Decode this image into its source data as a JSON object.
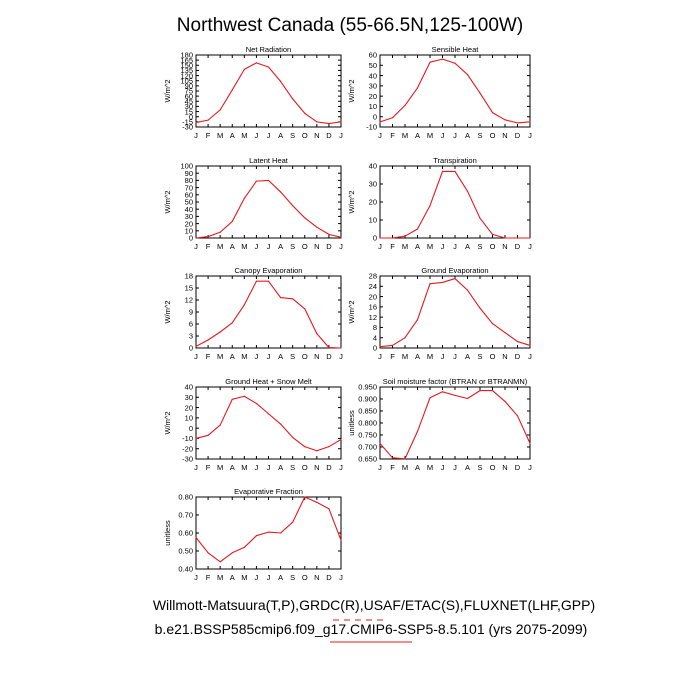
{
  "title": "Northwest Canada (55-66.5N,125-100W)",
  "footer": {
    "line1": "Willmott-Matsuura(T,P),GRDC(R),USAF/ETAC(S),FLUXNET(LHF,GPP)",
    "line2": "b.e21.BSSP585cmip6.f09_g17.CMIP6-SSP5-8.5.101 (yrs 2075-2099)"
  },
  "colors": {
    "line": "#e8181e",
    "axis": "#000000"
  },
  "chart_data": [
    {
      "type": "line",
      "title": "Net Radiation",
      "ylabel": "W/m^2",
      "categories": [
        "J",
        "F",
        "M",
        "A",
        "M",
        "J",
        "J",
        "A",
        "S",
        "O",
        "N",
        "D",
        "J"
      ],
      "yticks": [
        -30,
        -15,
        0,
        15,
        30,
        45,
        60,
        75,
        90,
        105,
        120,
        135,
        150,
        165,
        180
      ],
      "ylim": [
        -30,
        180
      ],
      "values": [
        -17,
        -10,
        20,
        78,
        138,
        157,
        145,
        103,
        52,
        10,
        -15,
        -20,
        -15
      ]
    },
    {
      "type": "line",
      "title": "Sensible Heat",
      "ylabel": "W/m^2",
      "categories": [
        "J",
        "F",
        "M",
        "A",
        "M",
        "J",
        "J",
        "A",
        "S",
        "O",
        "N",
        "D",
        "J"
      ],
      "yticks": [
        -10,
        0,
        10,
        20,
        30,
        40,
        50,
        60
      ],
      "ylim": [
        -10,
        60
      ],
      "values": [
        -5,
        -1,
        11,
        28,
        53,
        56,
        52,
        41,
        23,
        4,
        -3,
        -6,
        -5
      ]
    },
    {
      "type": "line",
      "title": "Latent Heat",
      "ylabel": "W/m^2",
      "categories": [
        "J",
        "F",
        "M",
        "A",
        "M",
        "J",
        "J",
        "A",
        "S",
        "O",
        "N",
        "D",
        "J"
      ],
      "yticks": [
        0,
        10,
        20,
        30,
        40,
        50,
        60,
        70,
        80,
        90,
        100
      ],
      "ylim": [
        0,
        100
      ],
      "values": [
        0,
        2,
        8,
        23,
        55,
        79,
        80,
        64,
        45,
        28,
        15,
        5,
        1
      ]
    },
    {
      "type": "line",
      "title": "Transpiration",
      "ylabel": "W/m^2",
      "categories": [
        "J",
        "F",
        "M",
        "A",
        "M",
        "J",
        "J",
        "A",
        "S",
        "O",
        "N",
        "D",
        "J"
      ],
      "yticks": [
        0,
        10,
        20,
        30,
        40
      ],
      "ylim": [
        0,
        40
      ],
      "values": [
        0,
        0,
        1,
        5,
        18,
        37,
        37,
        26,
        11,
        2,
        0,
        0,
        0
      ]
    },
    {
      "type": "line",
      "title": "Canopy Evaporation",
      "ylabel": "W/m^2",
      "categories": [
        "J",
        "F",
        "M",
        "A",
        "M",
        "J",
        "J",
        "A",
        "S",
        "O",
        "N",
        "D",
        "J"
      ],
      "yticks": [
        0,
        3,
        6,
        9,
        12,
        15,
        18
      ],
      "ylim": [
        0,
        18
      ],
      "values": [
        0.4,
        2.0,
        4.0,
        6.3,
        10.8,
        16.7,
        16.7,
        12.6,
        12.3,
        9.8,
        3.6,
        0.1,
        0.0
      ]
    },
    {
      "type": "line",
      "title": "Ground Evaporation",
      "ylabel": "W/m^2",
      "categories": [
        "J",
        "F",
        "M",
        "A",
        "M",
        "J",
        "J",
        "A",
        "S",
        "O",
        "N",
        "D",
        "J"
      ],
      "yticks": [
        0,
        4,
        8,
        12,
        16,
        20,
        24,
        28
      ],
      "ylim": [
        0,
        28
      ],
      "values": [
        0.5,
        1.0,
        4.0,
        11.0,
        25.0,
        25.5,
        27.0,
        22.5,
        15.5,
        9.5,
        6.0,
        2.5,
        1.0
      ]
    },
    {
      "type": "line",
      "title": "Ground Heat + Snow Melt",
      "ylabel": "W/m^2",
      "categories": [
        "J",
        "F",
        "M",
        "A",
        "M",
        "J",
        "J",
        "A",
        "S",
        "O",
        "N",
        "D",
        "J"
      ],
      "yticks": [
        -30,
        -20,
        -10,
        0,
        10,
        20,
        30,
        40
      ],
      "ylim": [
        -30,
        40
      ],
      "values": [
        -10,
        -7,
        3,
        28,
        31,
        24,
        14,
        4,
        -9,
        -18,
        -22,
        -18,
        -11
      ]
    },
    {
      "type": "line",
      "title": "Soil moisture factor (BTRAN or BTRANMN)",
      "ylabel": "unitless",
      "categories": [
        "J",
        "F",
        "M",
        "A",
        "M",
        "J",
        "J",
        "A",
        "S",
        "O",
        "N",
        "D",
        "J"
      ],
      "yticks": [
        "0.650",
        "0.700",
        "0.750",
        "0.800",
        "0.850",
        "0.900",
        "0.950"
      ],
      "ylim": [
        0.65,
        0.95
      ],
      "values": [
        0.715,
        0.655,
        0.651,
        0.765,
        0.905,
        0.93,
        0.915,
        0.902,
        0.935,
        0.935,
        0.89,
        0.83,
        0.715
      ]
    },
    {
      "type": "line",
      "title": "Evaporative Fraction",
      "ylabel": "unitless",
      "categories": [
        "J",
        "F",
        "M",
        "A",
        "M",
        "J",
        "J",
        "A",
        "S",
        "O",
        "N",
        "D",
        "J"
      ],
      "yticks": [
        "0.40",
        "0.50",
        "0.60",
        "0.70",
        "0.80"
      ],
      "ylim": [
        0.4,
        0.8
      ],
      "values": [
        0.575,
        0.49,
        0.44,
        0.49,
        0.52,
        0.585,
        0.605,
        0.6,
        0.66,
        0.8,
        0.77,
        0.735,
        0.56
      ]
    }
  ]
}
